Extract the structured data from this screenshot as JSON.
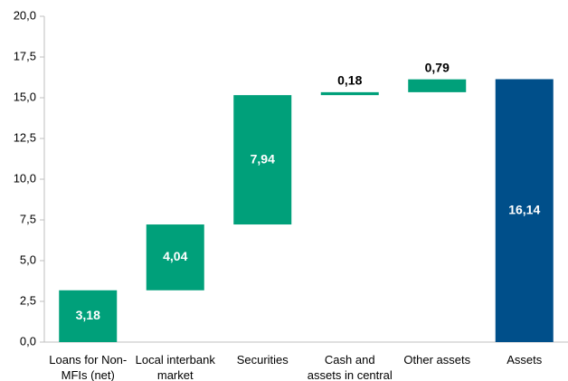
{
  "chart_data": {
    "type": "waterfall",
    "categories": [
      "Loans for Non-MFIs (net)",
      "Local interbank market",
      "Securities",
      "Cash and assets in central bank",
      "Other assets",
      "Assets"
    ],
    "values": [
      3.18,
      4.04,
      7.94,
      0.18,
      0.79,
      16.14
    ],
    "value_labels": [
      "3,18",
      "4,04",
      "7,94",
      "0,18",
      "0,79",
      "16,14"
    ],
    "colors": [
      "#00a07a",
      "#00a07a",
      "#00a07a",
      "#00a07a",
      "#00a07a",
      "#004f8a"
    ],
    "ylim": [
      0,
      20
    ],
    "yticks": [
      {
        "value": 0,
        "label": "0,0"
      },
      {
        "value": 2.5,
        "label": "2,5"
      },
      {
        "value": 5,
        "label": "5,0"
      },
      {
        "value": 7.5,
        "label": "7,5"
      },
      {
        "value": 10,
        "label": "10,0"
      },
      {
        "value": 12.5,
        "label": "12,5"
      },
      {
        "value": 15,
        "label": "15,0"
      },
      {
        "value": 17.5,
        "label": "17,5"
      },
      {
        "value": 20,
        "label": "20,0"
      }
    ],
    "grid": false
  }
}
